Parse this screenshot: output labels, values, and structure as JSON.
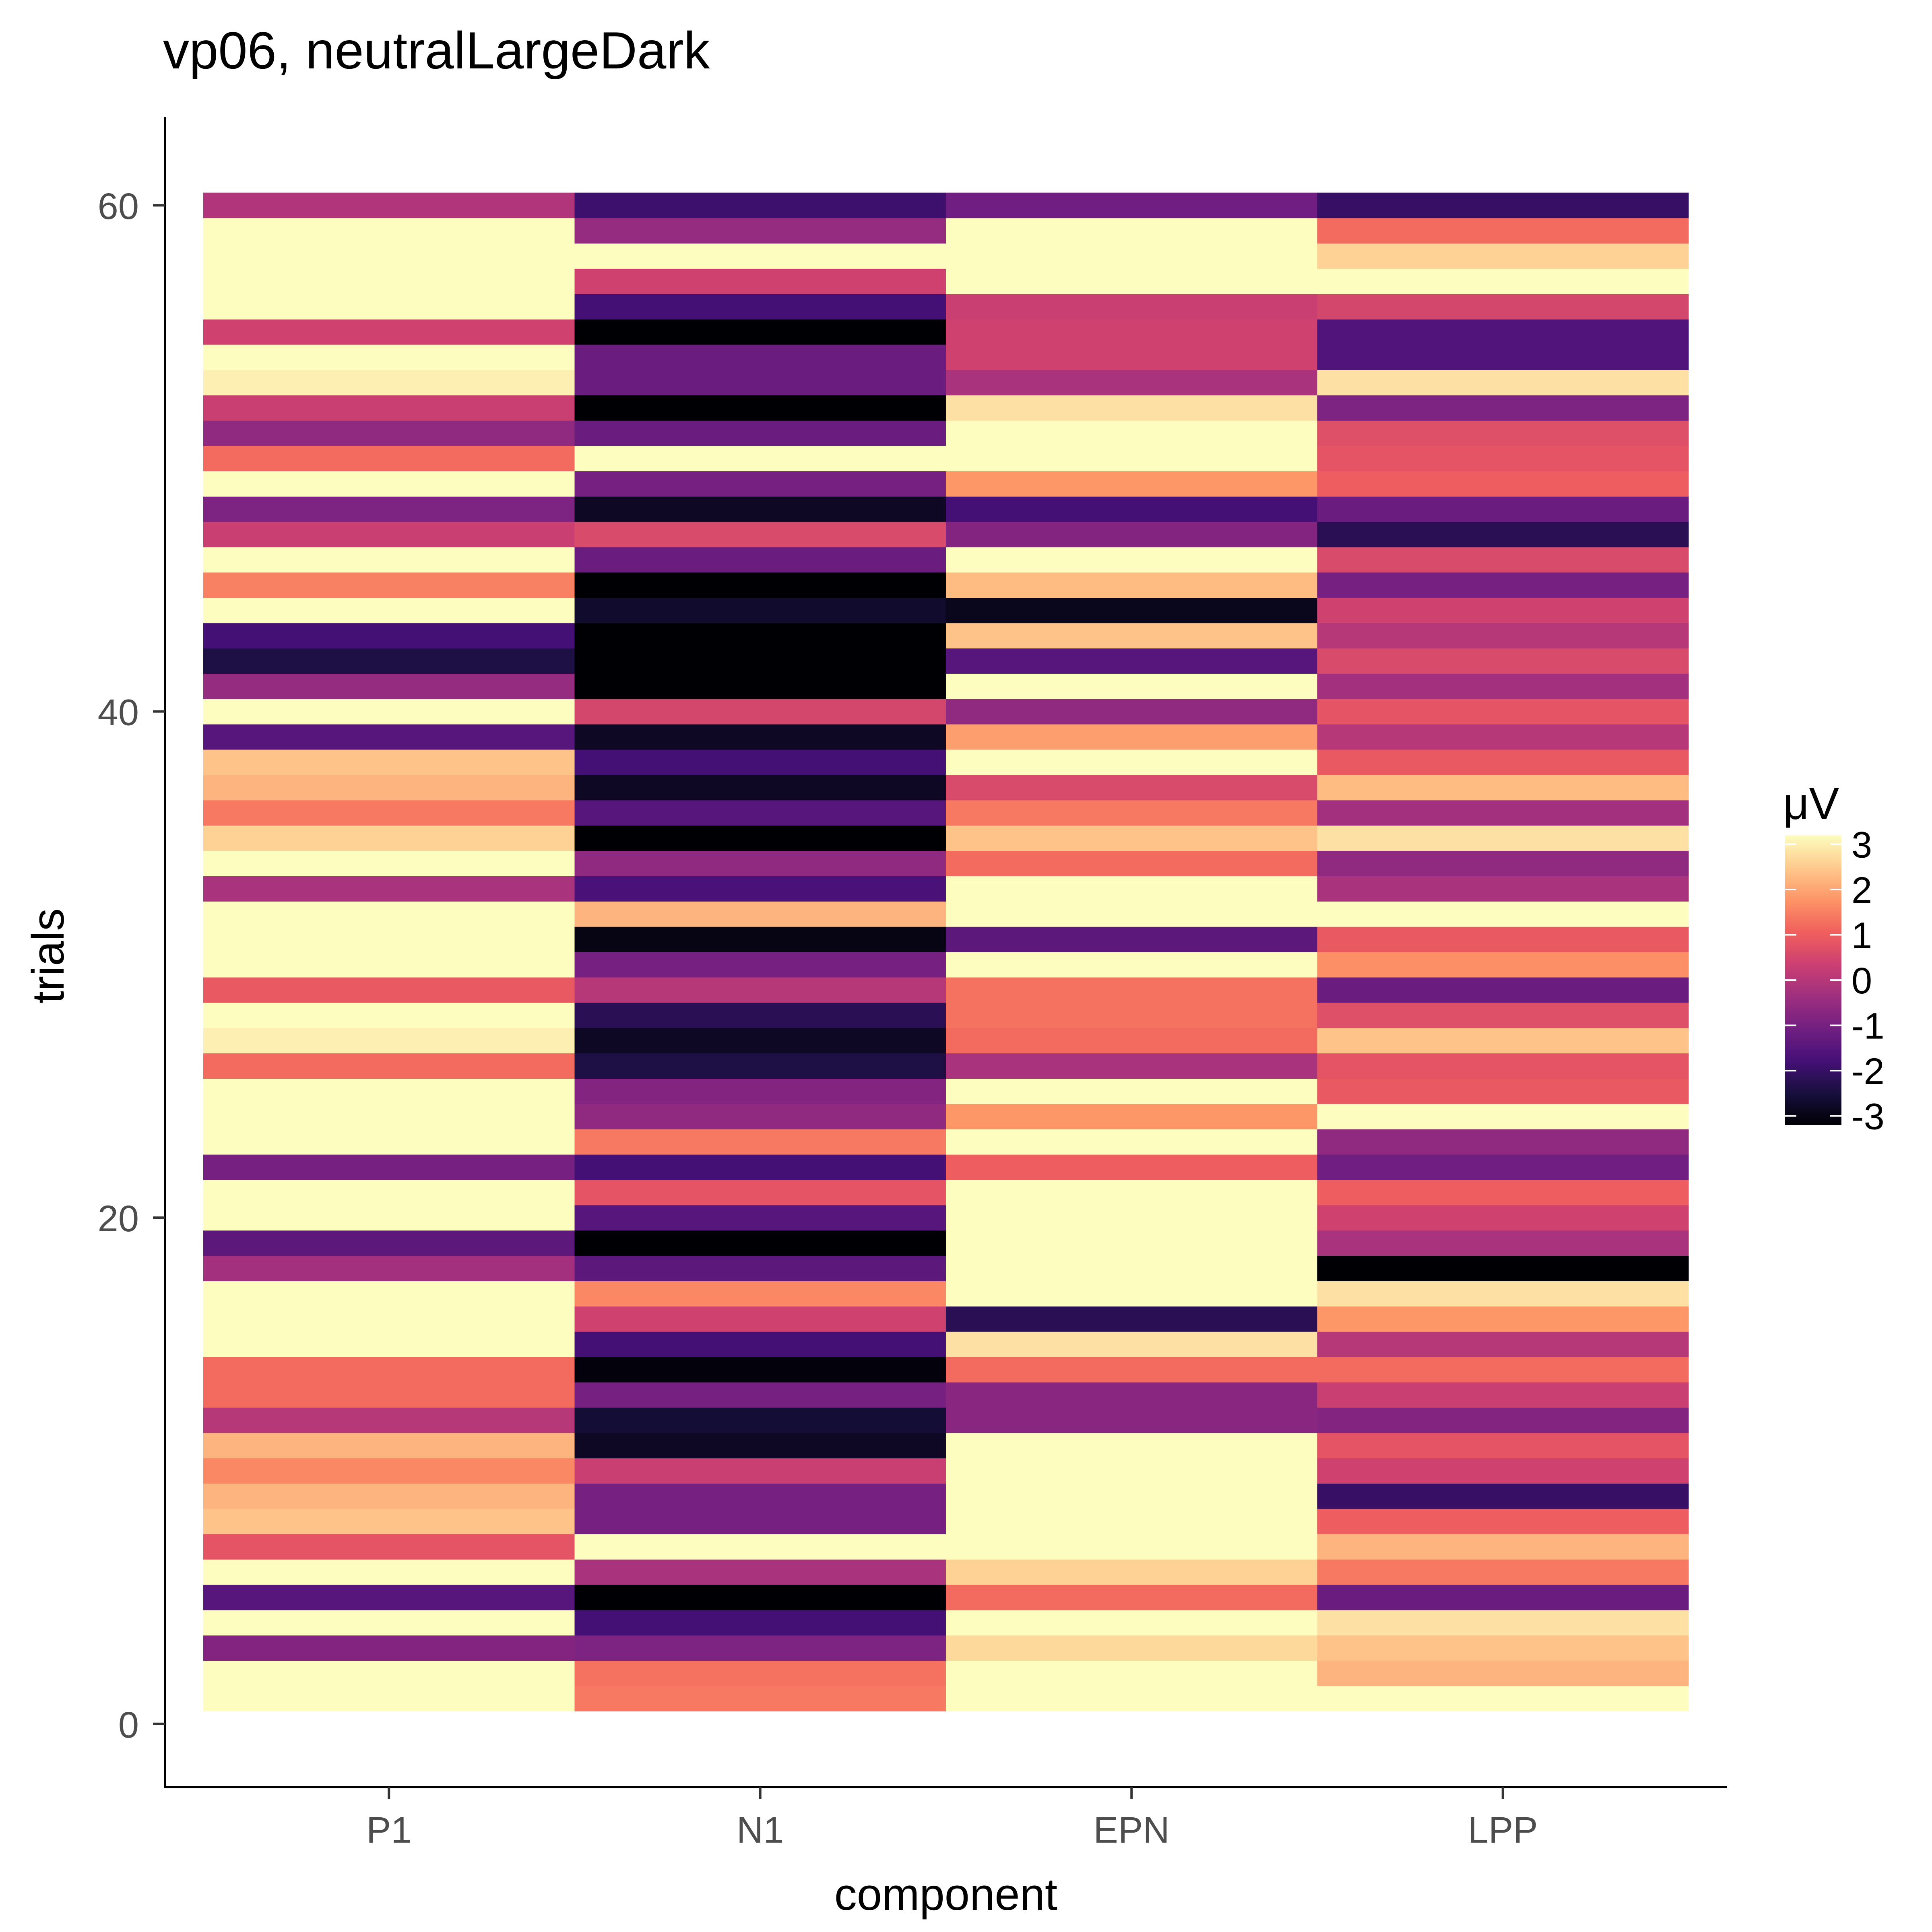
{
  "chart_data": {
    "type": "heatmap",
    "title": "vp06, neutralLargeDark",
    "xlabel": "component",
    "ylabel": "trials",
    "categories": [
      "P1",
      "N1",
      "EPN",
      "LPP"
    ],
    "y_ticks": [
      0,
      20,
      40,
      60
    ],
    "ylim": [
      -2.5,
      63.5
    ],
    "trials": [
      1,
      60
    ],
    "colorscale": {
      "name": "magma",
      "title": "μV",
      "min": -3.2,
      "max": 3.2,
      "ticks": [
        3,
        2,
        1,
        0,
        -1,
        -2,
        -3
      ],
      "stops": [
        "#000004",
        "#180f3e",
        "#451077",
        "#721f81",
        "#9f2f7f",
        "#cd4071",
        "#f1605d",
        "#fd9567",
        "#feca8d",
        "#fcfdbf"
      ]
    },
    "grid": false,
    "legend": "right",
    "values": {
      "P1": [
        3.2,
        3.2,
        -0.8,
        3.2,
        -1.5,
        3.2,
        0.8,
        2.4,
        2.2,
        1.6,
        2.2,
        0.0,
        1.2,
        1.2,
        3.2,
        3.2,
        3.2,
        -0.3,
        -1.4,
        3.2,
        3.2,
        -1.0,
        3.2,
        3.2,
        3.2,
        1.2,
        3.0,
        3.2,
        0.9,
        3.2,
        3.2,
        3.2,
        -0.2,
        3.2,
        2.6,
        1.4,
        2.2,
        2.4,
        -1.5,
        3.2,
        -0.5,
        -2.4,
        -1.8,
        3.2,
        1.5,
        3.2,
        0.3,
        -0.9,
        3.2,
        1.2,
        -0.6,
        0.3,
        3.0,
        3.2,
        0.4,
        3.2,
        3.2,
        3.2,
        3.2,
        -0.1
      ],
      "N1": [
        1.4,
        1.3,
        -0.9,
        -1.8,
        -3.2,
        -0.2,
        3.2,
        -1.0,
        -1.0,
        0.3,
        -2.8,
        -2.6,
        -1.0,
        -3.1,
        -1.8,
        0.4,
        1.6,
        -1.4,
        -3.2,
        -1.5,
        0.8,
        -1.8,
        1.4,
        -0.6,
        -0.8,
        -2.4,
        -2.8,
        -2.2,
        0.0,
        -1.0,
        -3.0,
        2.2,
        -1.7,
        -0.6,
        -3.2,
        -1.5,
        -2.8,
        -1.8,
        -2.8,
        0.5,
        -3.2,
        -3.2,
        -3.2,
        -2.7,
        -3.2,
        -1.2,
        0.6,
        -2.8,
        -1.0,
        3.2,
        -1.2,
        -3.2,
        -1.2,
        -1.2,
        -3.2,
        -1.8,
        0.4,
        3.2,
        -0.5,
        -1.9
      ],
      "EPN": [
        3.2,
        3.2,
        2.7,
        3.2,
        1.2,
        2.6,
        3.2,
        3.2,
        3.2,
        3.2,
        3.2,
        -0.7,
        -0.7,
        1.2,
        2.8,
        -2.2,
        3.2,
        3.2,
        3.2,
        3.2,
        3.2,
        1.0,
        3.2,
        1.8,
        3.2,
        -0.2,
        1.2,
        1.3,
        1.3,
        3.2,
        -1.4,
        3.2,
        3.2,
        1.2,
        2.4,
        1.4,
        0.6,
        3.2,
        1.9,
        -0.6,
        3.2,
        -1.5,
        2.4,
        -2.9,
        2.3,
        3.2,
        -0.8,
        -1.8,
        1.8,
        3.2,
        3.2,
        2.8,
        -0.2,
        0.4,
        0.4,
        0.3,
        3.2,
        3.2,
        3.2,
        -1.1
      ],
      "LPP": [
        3.2,
        2.2,
        2.4,
        2.8,
        -1.2,
        1.4,
        2.2,
        1.0,
        -2.0,
        0.4,
        0.8,
        -0.8,
        0.3,
        1.2,
        0.0,
        1.8,
        2.8,
        -3.2,
        -0.2,
        0.4,
        1.0,
        -1.1,
        -0.6,
        3.2,
        0.9,
        0.8,
        2.4,
        0.7,
        -1.2,
        1.7,
        0.9,
        3.2,
        -0.2,
        -0.6,
        2.8,
        -0.3,
        2.3,
        0.9,
        0.0,
        0.8,
        -0.3,
        0.6,
        0.0,
        0.4,
        -1.0,
        0.6,
        -2.2,
        -1.2,
        1.0,
        0.8,
        0.7,
        -0.9,
        2.8,
        -1.6,
        -1.6,
        0.5,
        3.2,
        2.6,
        1.2,
        -2.0
      ]
    }
  }
}
